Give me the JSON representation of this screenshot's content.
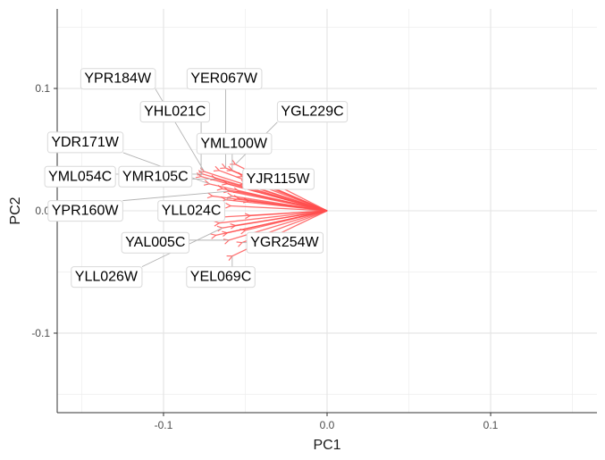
{
  "chart_data": {
    "type": "biplot",
    "xlabel": "PC1",
    "ylabel": "PC2",
    "xlim": [
      -0.165,
      0.165
    ],
    "ylim": [
      -0.165,
      0.165
    ],
    "x_ticks": [
      {
        "value": -0.1,
        "label": "-0.1"
      },
      {
        "value": 0.0,
        "label": "0.0"
      },
      {
        "value": 0.1,
        "label": "0.1"
      }
    ],
    "y_ticks": [
      {
        "value": -0.1,
        "label": "-0.1"
      },
      {
        "value": 0.0,
        "label": "0.0"
      },
      {
        "value": 0.1,
        "label": "0.1"
      }
    ],
    "grid": true,
    "arrow_color": "#ff4d4d",
    "origin": [
      0.0,
      0.0
    ],
    "loadings": [
      {
        "gene": "YPR184W",
        "x": -0.075,
        "y": 0.032,
        "label_x": -0.128,
        "label_y": 0.109
      },
      {
        "gene": "YER067W",
        "x": -0.062,
        "y": 0.035,
        "label_x": -0.063,
        "label_y": 0.109
      },
      {
        "gene": "YHL021C",
        "x": -0.077,
        "y": 0.028,
        "label_x": -0.093,
        "label_y": 0.082
      },
      {
        "gene": "YGL229C",
        "x": -0.056,
        "y": 0.038,
        "label_x": -0.009,
        "label_y": 0.082
      },
      {
        "gene": "YDR171W",
        "x": -0.072,
        "y": 0.022,
        "label_x": -0.148,
        "label_y": 0.057
      },
      {
        "gene": "YML100W",
        "x": -0.058,
        "y": 0.033,
        "label_x": -0.057,
        "label_y": 0.056
      },
      {
        "gene": "YML054C",
        "x": -0.076,
        "y": 0.03,
        "label_x": -0.151,
        "label_y": 0.029
      },
      {
        "gene": "YMR105C",
        "x": -0.068,
        "y": 0.026,
        "label_x": -0.105,
        "label_y": 0.029
      },
      {
        "gene": "YJR115W",
        "x": -0.05,
        "y": 0.022,
        "label_x": -0.03,
        "label_y": 0.027
      },
      {
        "gene": "YPR160W",
        "x": -0.06,
        "y": 0.016,
        "label_x": -0.148,
        "label_y": 0.001
      },
      {
        "gene": "YLL024C",
        "x": -0.058,
        "y": 0.012,
        "label_x": -0.083,
        "label_y": 0.001
      },
      {
        "gene": "YAL005C",
        "x": -0.06,
        "y": -0.024,
        "label_x": -0.105,
        "label_y": -0.025
      },
      {
        "gene": "YGR254W",
        "x": -0.052,
        "y": -0.026,
        "label_x": -0.026,
        "label_y": -0.025
      },
      {
        "gene": "YLL026W",
        "x": -0.064,
        "y": -0.014,
        "label_x": -0.135,
        "label_y": -0.053
      },
      {
        "gene": "YEL069C",
        "x": -0.058,
        "y": -0.037,
        "label_x": -0.065,
        "label_y": -0.053
      },
      {
        "gene": "",
        "x": -0.054,
        "y": 0.01
      },
      {
        "gene": "",
        "x": -0.048,
        "y": 0.008
      },
      {
        "gene": "",
        "x": -0.062,
        "y": 0.009
      },
      {
        "gene": "",
        "x": -0.059,
        "y": 0.004
      },
      {
        "gene": "",
        "x": -0.056,
        "y": -0.012
      },
      {
        "gene": "",
        "x": -0.066,
        "y": -0.01
      },
      {
        "gene": "",
        "x": -0.061,
        "y": -0.018
      },
      {
        "gene": "",
        "x": -0.05,
        "y": -0.016
      },
      {
        "gene": "",
        "x": -0.068,
        "y": -0.02
      },
      {
        "gene": "",
        "x": -0.064,
        "y": 0.018
      },
      {
        "gene": "",
        "x": -0.054,
        "y": 0.016
      },
      {
        "gene": "",
        "x": -0.061,
        "y": 0.022
      },
      {
        "gene": "",
        "x": -0.052,
        "y": 0.028
      },
      {
        "gene": "",
        "x": -0.066,
        "y": 0.033
      },
      {
        "gene": "",
        "x": -0.07,
        "y": 0.012
      },
      {
        "gene": "",
        "x": -0.063,
        "y": -0.005
      },
      {
        "gene": "",
        "x": -0.047,
        "y": -0.004
      }
    ]
  }
}
